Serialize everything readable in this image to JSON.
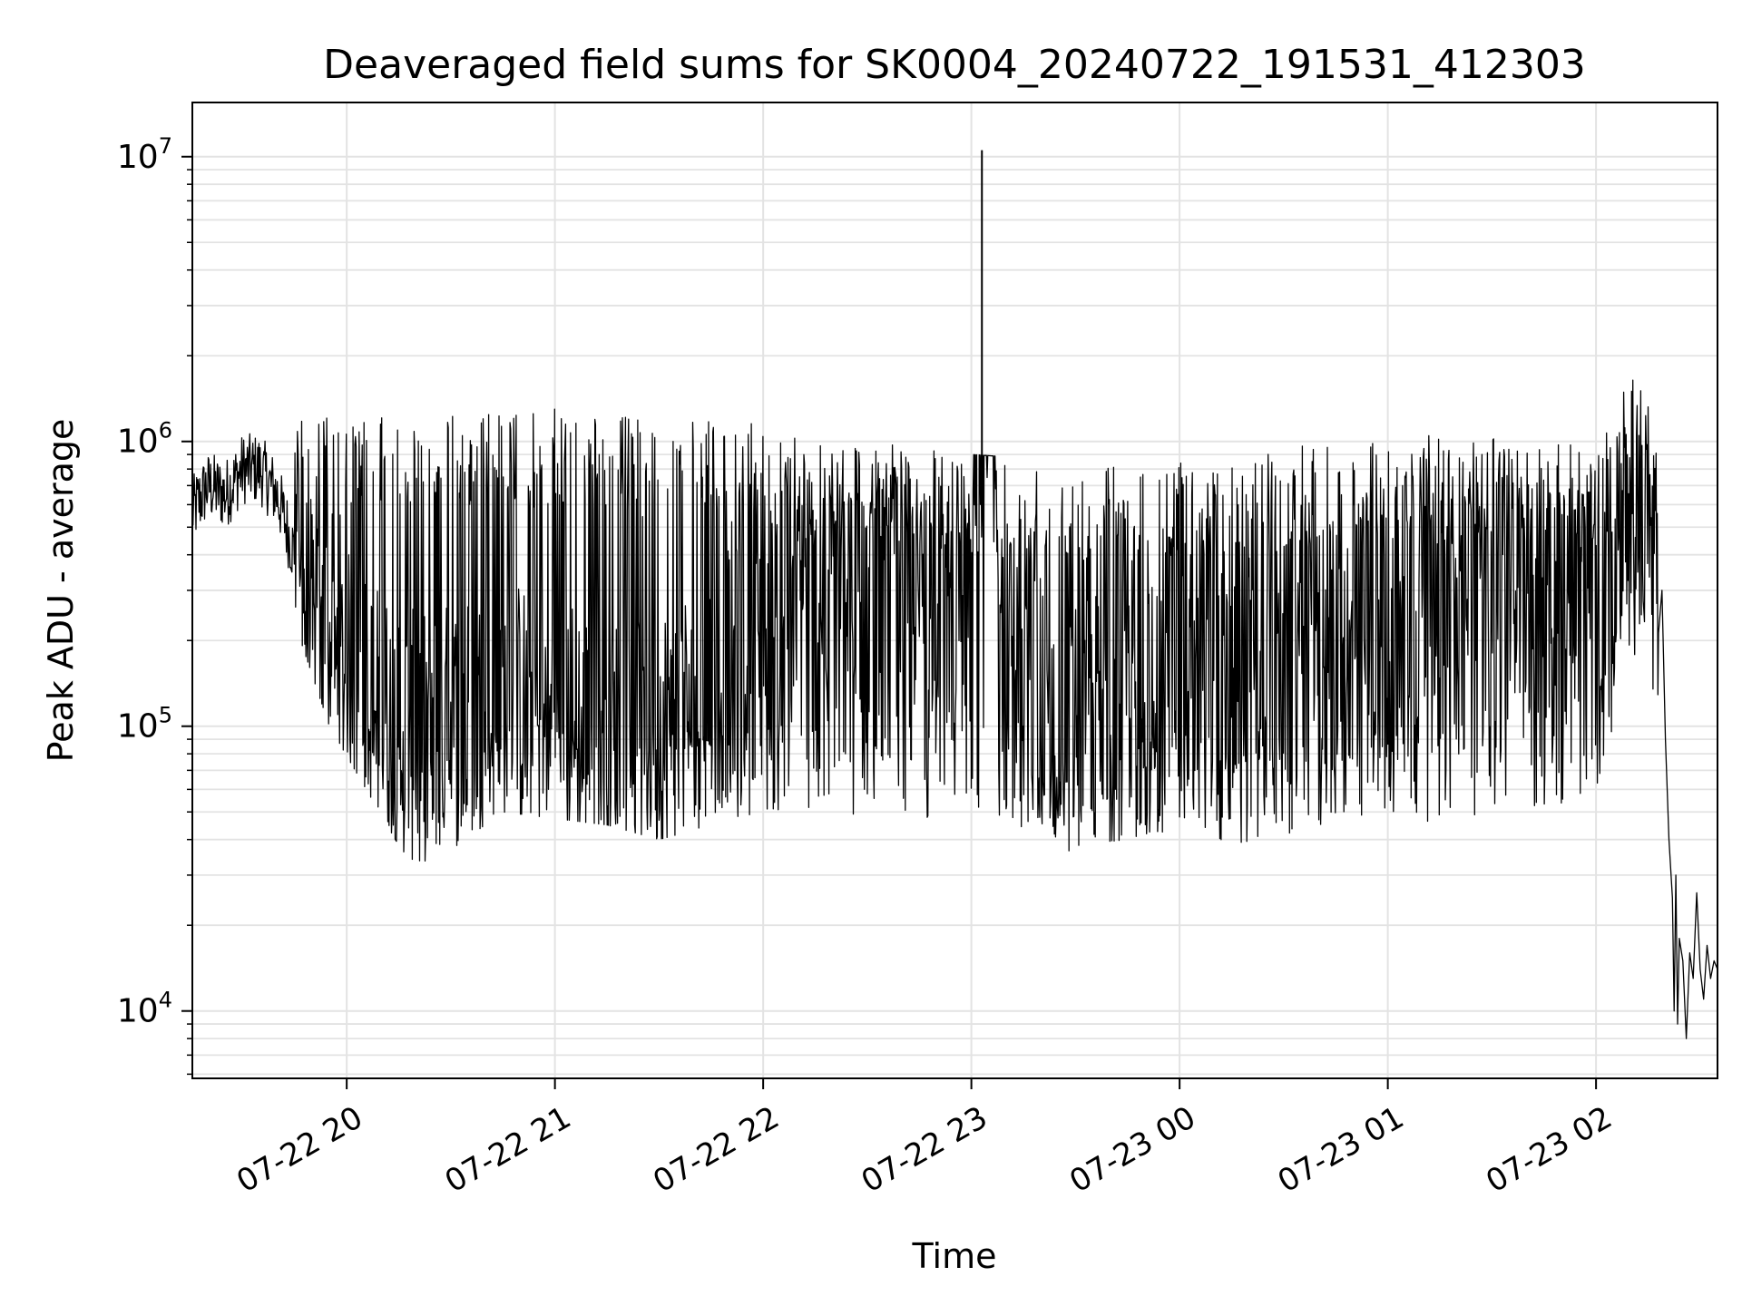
{
  "chart_data": {
    "type": "line",
    "title": "Deaveraged field sums for SK0004_20240722_191531_412303",
    "xlabel": "Time",
    "ylabel": "Peak ADU - average",
    "x_scale": "time",
    "y_scale": "log",
    "xlim": [
      "2024-07-22 19:15:31",
      "2024-07-23 02:35:00"
    ],
    "ylim": [
      5800,
      15500000
    ],
    "grid": true,
    "line_color": "#000000",
    "x_ticks": [
      "07-22 20",
      "07-22 21",
      "07-22 22",
      "07-22 23",
      "07-23 00",
      "07-23 01",
      "07-23 02"
    ],
    "x_tick_times": [
      "2024-07-22 20:00",
      "2024-07-22 21:00",
      "2024-07-22 22:00",
      "2024-07-22 23:00",
      "2024-07-23 00:00",
      "2024-07-23 01:00",
      "2024-07-23 02:00"
    ],
    "y_ticks": [
      {
        "value": 10000,
        "base": "10",
        "exp": "4"
      },
      {
        "value": 100000,
        "base": "10",
        "exp": "5"
      },
      {
        "value": 1000000,
        "base": "10",
        "exp": "6"
      },
      {
        "value": 10000000,
        "base": "10",
        "exp": "7"
      }
    ],
    "series": [
      {
        "points": [
          [
            "2024-07-22 19:15",
            550000
          ],
          [
            "2024-07-22 19:20",
            700000
          ],
          [
            "2024-07-22 19:25",
            650000
          ],
          [
            "2024-07-22 19:30",
            800000
          ],
          [
            "2024-07-22 19:35",
            800000
          ],
          [
            "2024-07-22 19:40",
            650000
          ],
          [
            "2024-07-22 19:45",
            400000
          ],
          [
            "2024-07-22 19:50",
            200000
          ],
          [
            "2024-07-22 19:55",
            180000
          ],
          [
            "2024-07-22 20:00",
            150000
          ],
          [
            "2024-07-22 20:10",
            110000
          ],
          [
            "2024-07-22 20:20",
            90000
          ],
          [
            "2024-07-22 20:30",
            100000
          ],
          [
            "2024-07-22 20:45",
            120000
          ],
          [
            "2024-07-22 21:00",
            110000
          ],
          [
            "2024-07-22 21:15",
            90000
          ],
          [
            "2024-07-22 21:30",
            100000
          ],
          [
            "2024-07-22 21:45",
            130000
          ],
          [
            "2024-07-22 22:00",
            200000
          ],
          [
            "2024-07-22 22:15",
            250000
          ],
          [
            "2024-07-22 22:30",
            300000
          ],
          [
            "2024-07-22 22:45",
            300000
          ],
          [
            "2024-07-22 23:00",
            280000
          ],
          [
            "2024-07-22 23:03",
            10500000
          ],
          [
            "2024-07-22 23:10",
            200000
          ],
          [
            "2024-07-22 23:25",
            100000
          ],
          [
            "2024-07-22 23:40",
            110000
          ],
          [
            "2024-07-23 00:00",
            120000
          ],
          [
            "2024-07-23 00:20",
            140000
          ],
          [
            "2024-07-23 00:40",
            180000
          ],
          [
            "2024-07-23 01:00",
            220000
          ],
          [
            "2024-07-23 01:20",
            250000
          ],
          [
            "2024-07-23 01:40",
            280000
          ],
          [
            "2024-07-23 02:00",
            350000
          ],
          [
            "2024-07-23 02:10",
            450000
          ],
          [
            "2024-07-23 02:15",
            700000
          ],
          [
            "2024-07-23 02:20",
            400000
          ],
          [
            "2024-07-23 02:25",
            15000
          ],
          [
            "2024-07-23 02:30",
            14000
          ],
          [
            "2024-07-23 02:35",
            14000
          ]
        ],
        "upper_envelope": [
          [
            "2024-07-22 19:15",
            800000
          ],
          [
            "2024-07-22 19:30",
            1050000
          ],
          [
            "2024-07-22 19:38",
            1400000
          ],
          [
            "2024-07-22 20:00",
            1200000
          ],
          [
            "2024-07-22 20:30",
            1250000
          ],
          [
            "2024-07-22 21:00",
            1300000
          ],
          [
            "2024-07-22 21:30",
            1200000
          ],
          [
            "2024-07-22 22:00",
            1150000
          ],
          [
            "2024-07-22 22:30",
            1000000
          ],
          [
            "2024-07-22 23:00",
            900000
          ],
          [
            "2024-07-22 23:30",
            850000
          ],
          [
            "2024-07-23 00:00",
            850000
          ],
          [
            "2024-07-23 00:30",
            950000
          ],
          [
            "2024-07-23 01:00",
            1050000
          ],
          [
            "2024-07-23 01:30",
            1050000
          ],
          [
            "2024-07-23 02:00",
            950000
          ],
          [
            "2024-07-23 02:10",
            1800000
          ],
          [
            "2024-07-23 02:18",
            1100000
          ]
        ],
        "lower_envelope": [
          [
            "2024-07-22 19:15",
            500000
          ],
          [
            "2024-07-22 19:40",
            350000
          ],
          [
            "2024-07-22 19:55",
            100000
          ],
          [
            "2024-07-22 20:20",
            30000
          ],
          [
            "2024-07-22 20:45",
            50000
          ],
          [
            "2024-07-22 21:15",
            45000
          ],
          [
            "2024-07-22 21:30",
            40000
          ],
          [
            "2024-07-22 22:00",
            50000
          ],
          [
            "2024-07-22 22:30",
            45000
          ],
          [
            "2024-07-22 23:00",
            48000
          ],
          [
            "2024-07-22 23:25",
            36000
          ],
          [
            "2024-07-23 00:00",
            40000
          ],
          [
            "2024-07-23 00:20",
            38000
          ],
          [
            "2024-07-23 01:00",
            45000
          ],
          [
            "2024-07-23 01:30",
            48000
          ],
          [
            "2024-07-23 02:00",
            55000
          ],
          [
            "2024-07-23 02:10",
            180000
          ],
          [
            "2024-07-23 02:18",
            120000
          ]
        ]
      }
    ]
  }
}
